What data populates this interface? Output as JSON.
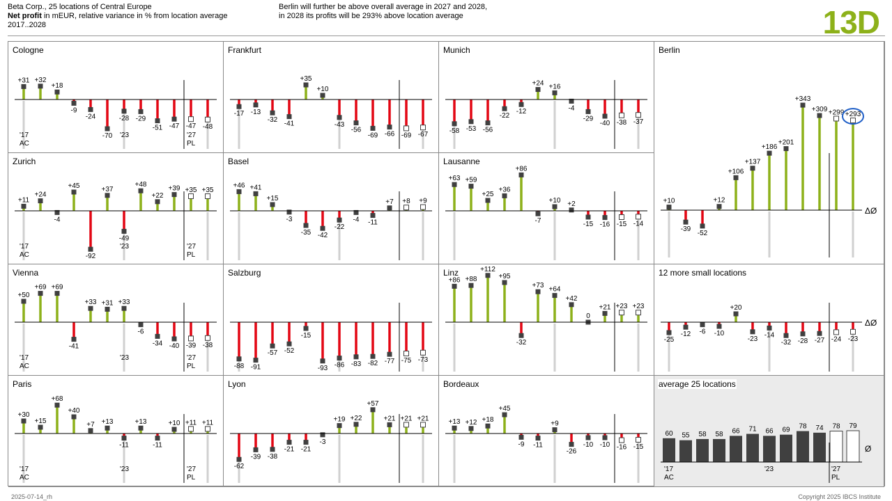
{
  "header": {
    "line1": "Beta Corp., 25 locations of Central Europe",
    "line2_bold": "Net profit",
    "line2_rest": " in mEUR, relative variance in % from location average",
    "line3": "2017..2028",
    "message1": "Berlin will further be above overall average in 2027 and 2028,",
    "message2": "in 2028 its profits will be 293% above location average",
    "page_id": "13D"
  },
  "footer": {
    "left": "2025-07-14_rh",
    "right": "Copyright 2025 IBCS Institute"
  },
  "colors": {
    "positive": "#8DB11A",
    "negative": "#E30613",
    "actual_marker": "#404040",
    "accent": "#8DB11A",
    "highlight_circle": "#1F5FC7"
  },
  "chart_data": [
    {
      "name": "Cologne",
      "type": "bar",
      "x_start": "'17",
      "x_mid": "'23",
      "x_plan": "'27",
      "scenario_actual": "AC",
      "scenario_plan": "PL",
      "labels": [
        "+31",
        "+32",
        "+18",
        "-9",
        "-24",
        "-70",
        "-28",
        "-29",
        "-51",
        "-47",
        "-47",
        "-48"
      ],
      "values": [
        31,
        32,
        18,
        -9,
        -24,
        -70,
        -28,
        -29,
        -51,
        -47,
        -47,
        -48
      ]
    },
    {
      "name": "Frankfurt",
      "type": "bar",
      "labels": [
        "-17",
        "-13",
        "-32",
        "-41",
        "+35",
        "+10",
        "-43",
        "-56",
        "-69",
        "-66",
        "-69",
        "-67"
      ],
      "values": [
        -17,
        -13,
        -32,
        -41,
        35,
        10,
        -43,
        -56,
        -69,
        -66,
        -69,
        -67
      ]
    },
    {
      "name": "Munich",
      "type": "bar",
      "labels": [
        "-58",
        "-53",
        "-56",
        "-22",
        "-12",
        "+24",
        "+16",
        "-4",
        "-29",
        "-40",
        "-38",
        "-37"
      ],
      "values": [
        -58,
        -53,
        -56,
        -22,
        -12,
        24,
        16,
        -4,
        -29,
        -40,
        -38,
        -37
      ]
    },
    {
      "name": "Berlin",
      "type": "bar",
      "axis_label": "ΔØ",
      "labels": [
        "+10",
        "-39",
        "-52",
        "+12",
        "+106",
        "+137",
        "+186",
        "+201",
        "+343",
        "+309",
        "+299",
        "+293"
      ],
      "values": [
        10,
        -39,
        -52,
        12,
        106,
        137,
        186,
        201,
        343,
        309,
        299,
        293
      ]
    },
    {
      "name": "Zurich",
      "type": "bar",
      "x_start": "'17",
      "x_mid": "'23",
      "x_plan": "'27",
      "scenario_actual": "AC",
      "scenario_plan": "PL",
      "labels": [
        "+11",
        "+24",
        "-4",
        "+45",
        "-92",
        "+37",
        "-49",
        "+48",
        "+22",
        "+39",
        "+35",
        "+35"
      ],
      "values": [
        11,
        24,
        -4,
        45,
        -92,
        37,
        -49,
        48,
        22,
        39,
        35,
        35
      ]
    },
    {
      "name": "Basel",
      "type": "bar",
      "labels": [
        "+46",
        "+41",
        "+15",
        "-3",
        "-35",
        "-42",
        "-22",
        "-4",
        "-11",
        "+7",
        "+8",
        "+9"
      ],
      "values": [
        46,
        41,
        15,
        -3,
        -35,
        -42,
        -22,
        -4,
        -11,
        7,
        8,
        9
      ]
    },
    {
      "name": "Lausanne",
      "type": "bar",
      "labels": [
        "+63",
        "+59",
        "+25",
        "+36",
        "+86",
        "-7",
        "+10",
        "+2",
        "-15",
        "-16",
        "-15",
        "-14"
      ],
      "values": [
        63,
        59,
        25,
        36,
        86,
        -7,
        10,
        2,
        -15,
        -16,
        -15,
        -14
      ]
    },
    {
      "name": "Vienna",
      "type": "bar",
      "x_start": "'17",
      "x_mid": "'23",
      "x_plan": "'27",
      "scenario_actual": "AC",
      "scenario_plan": "PL",
      "labels": [
        "+50",
        "+69",
        "+69",
        "-41",
        "+33",
        "+31",
        "+33",
        "-6",
        "-34",
        "-40",
        "-39",
        "-38"
      ],
      "values": [
        50,
        69,
        69,
        -41,
        33,
        31,
        33,
        -6,
        -34,
        -40,
        -39,
        -38
      ]
    },
    {
      "name": "Salzburg",
      "type": "bar",
      "labels": [
        "-88",
        "-91",
        "-57",
        "-52",
        "-15",
        "-93",
        "-86",
        "-83",
        "-82",
        "-77",
        "-75",
        "-73"
      ],
      "values": [
        -88,
        -91,
        -57,
        -52,
        -15,
        -93,
        -86,
        -83,
        -82,
        -77,
        -75,
        -73
      ]
    },
    {
      "name": "Linz",
      "type": "bar",
      "labels": [
        "+86",
        "+88",
        "+112",
        "+95",
        "-32",
        "+73",
        "+64",
        "+42",
        "0",
        "+21",
        "+23",
        "+23"
      ],
      "values": [
        86,
        88,
        112,
        95,
        -32,
        73,
        64,
        42,
        0,
        21,
        23,
        23
      ]
    },
    {
      "name": "12 more small locations",
      "type": "bar",
      "axis_label": "ΔØ",
      "labels": [
        "-25",
        "-12",
        "-6",
        "-10",
        "+20",
        "-23",
        "-14",
        "-32",
        "-28",
        "-27",
        "-24",
        "-23"
      ],
      "values": [
        -25,
        -12,
        -6,
        -10,
        20,
        -23,
        -14,
        -32,
        -28,
        -27,
        -24,
        -23
      ]
    },
    {
      "name": "Paris",
      "type": "bar",
      "x_start": "'17",
      "x_mid": "'23",
      "x_plan": "'27",
      "scenario_actual": "AC",
      "scenario_plan": "PL",
      "labels": [
        "+30",
        "+15",
        "+68",
        "+40",
        "+7",
        "+13",
        "-11",
        "+13",
        "-11",
        "+10",
        "+11",
        "+11"
      ],
      "values": [
        30,
        15,
        68,
        40,
        7,
        13,
        -11,
        13,
        -11,
        10,
        11,
        11
      ]
    },
    {
      "name": "Lyon",
      "type": "bar",
      "labels": [
        "-62",
        "-39",
        "-38",
        "-21",
        "-21",
        "-3",
        "+19",
        "+22",
        "+57",
        "+21",
        "+21",
        "+21"
      ],
      "values": [
        -62,
        -39,
        -38,
        -21,
        -21,
        -3,
        19,
        22,
        57,
        21,
        21,
        21
      ]
    },
    {
      "name": "Bordeaux",
      "type": "bar",
      "labels": [
        "+13",
        "+12",
        "+18",
        "+45",
        "-9",
        "-11",
        "+9",
        "-26",
        "-10",
        "-10",
        "-16",
        "-15"
      ],
      "values": [
        13,
        12,
        18,
        45,
        -9,
        -11,
        9,
        -26,
        -10,
        -10,
        -16,
        -15
      ]
    },
    {
      "name": "average 25 locations",
      "type": "column",
      "axis_label": "Ø",
      "x_start": "'17",
      "x_mid": "'23",
      "x_plan": "'27",
      "scenario_actual": "AC",
      "scenario_plan": "PL",
      "labels": [
        "60",
        "55",
        "58",
        "58",
        "66",
        "71",
        "66",
        "69",
        "78",
        "74",
        "78",
        "79"
      ],
      "values": [
        60,
        55,
        58,
        58,
        66,
        71,
        66,
        69,
        78,
        74,
        78,
        79
      ]
    }
  ]
}
